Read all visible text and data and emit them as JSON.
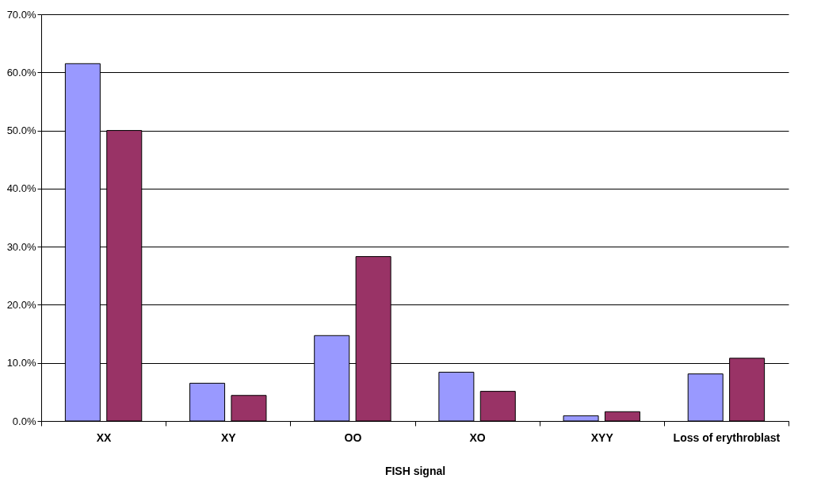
{
  "chart_data": {
    "type": "bar",
    "xlabel": "FISH signal",
    "categories": [
      "XX",
      "XY",
      "OO",
      "XO",
      "XYY",
      "Loss of erythroblast"
    ],
    "series": [
      {
        "color": "#9999ff",
        "values": [
          61.5,
          6.5,
          14.7,
          8.4,
          0.9,
          8.1
        ]
      },
      {
        "color": "#993366",
        "values": [
          50.0,
          4.4,
          28.3,
          5.1,
          1.6,
          10.8
        ]
      }
    ],
    "ylim": [
      0,
      70
    ],
    "yticks": [
      {
        "value": 0,
        "label": "0.0%"
      },
      {
        "value": 10,
        "label": "10.0%"
      },
      {
        "value": 20,
        "label": "20.0%"
      },
      {
        "value": 30,
        "label": "30.0%"
      },
      {
        "value": 40,
        "label": "40.0%"
      },
      {
        "value": 50,
        "label": "50.0%"
      },
      {
        "value": 60,
        "label": "60.0%"
      },
      {
        "value": 70,
        "label": "70.0%"
      }
    ],
    "grid": "y"
  }
}
